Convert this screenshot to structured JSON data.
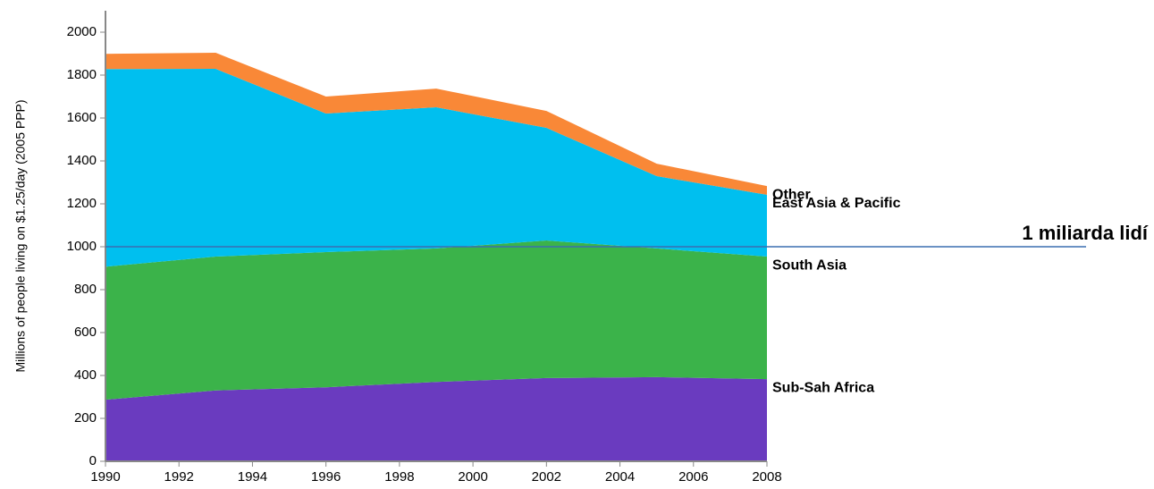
{
  "chart_data": {
    "type": "stacked_area",
    "y_label": "Millions of people living on $1.25/day (2005 PPP)",
    "x": [
      1990,
      1993,
      1996,
      1999,
      2002,
      2005,
      2008
    ],
    "series": [
      {
        "name": "Sub-Sah Africa",
        "color": "#6a3bbf",
        "values": [
          287,
          330,
          345,
          370,
          388,
          392,
          383
        ]
      },
      {
        "name": "South Asia",
        "color": "#3bb34a",
        "values": [
          620,
          624,
          630,
          622,
          641,
          600,
          571
        ]
      },
      {
        "name": "East Asia & Pacific",
        "color": "#00bfef",
        "values": [
          921,
          875,
          646,
          658,
          525,
          337,
          288
        ]
      },
      {
        "name": "Other",
        "color": "#f98837",
        "values": [
          71,
          75,
          79,
          87,
          79,
          58,
          41
        ]
      }
    ],
    "xlim": [
      1990,
      2008
    ],
    "xticks": [
      1990,
      1992,
      1994,
      1996,
      1998,
      2000,
      2002,
      2004,
      2006,
      2008
    ],
    "ylim": [
      0,
      2100
    ],
    "yticks": [
      0,
      200,
      400,
      600,
      800,
      1000,
      1200,
      1400,
      1600,
      1800,
      2000
    ],
    "reference_line": {
      "value": 1000,
      "label": "1 miliarda lidí",
      "color": "#3a6fb0"
    }
  }
}
